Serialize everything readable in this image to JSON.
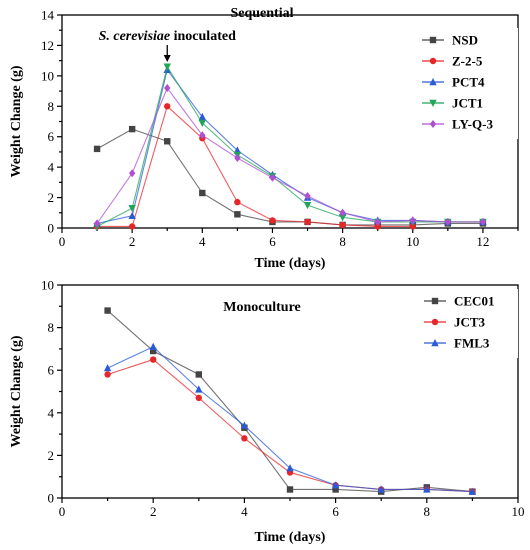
{
  "chart_data": [
    {
      "type": "line",
      "title": "Sequential",
      "xlabel": "Time (days)",
      "ylabel": "Weight Change (g)",
      "xlim": [
        0,
        13
      ],
      "ylim": [
        0,
        14
      ],
      "xticks": [
        0,
        2,
        4,
        6,
        8,
        10,
        12
      ],
      "yticks": [
        0,
        2,
        4,
        6,
        8,
        10,
        12,
        14
      ],
      "legend_position": "top-right",
      "annotations": [
        {
          "text_italic": "S. cerevisiae",
          "text_rest": " inoculated",
          "x": 3
        }
      ],
      "series": [
        {
          "name": "NSD",
          "color": "#444444",
          "marker": "square",
          "linestyle": "solid",
          "x": [
            1,
            2,
            3,
            4,
            5,
            6,
            7,
            8,
            9,
            10,
            11,
            12
          ],
          "values": [
            5.2,
            6.5,
            5.7,
            2.3,
            0.9,
            0.4,
            0.4,
            0.2,
            0.2,
            0.2,
            0.3,
            0.3
          ]
        },
        {
          "name": "Z-2-5",
          "color": "#e8262a",
          "marker": "circle",
          "linestyle": "solid",
          "x": [
            1,
            2,
            3,
            4,
            5,
            6,
            7,
            8,
            9,
            10
          ],
          "values": [
            0.1,
            0.1,
            8.0,
            5.9,
            1.7,
            0.5,
            0.4,
            0.2,
            0.1,
            0.1
          ]
        },
        {
          "name": "PCT4",
          "color": "#2a5bd7",
          "marker": "triangle-up",
          "linestyle": "solid",
          "x": [
            1,
            2,
            3,
            4,
            5,
            6,
            7,
            8,
            9,
            10,
            11,
            12
          ],
          "values": [
            0.3,
            0.8,
            10.4,
            7.3,
            5.1,
            3.5,
            2.0,
            1.0,
            0.5,
            0.5,
            0.4,
            0.4
          ]
        },
        {
          "name": "JCT1",
          "color": "#22a55a",
          "marker": "triangle-down",
          "linestyle": "solid",
          "x": [
            1,
            2,
            3,
            4,
            5,
            6,
            7,
            8,
            9,
            10,
            11,
            12
          ],
          "values": [
            0.1,
            1.3,
            10.6,
            6.9,
            4.8,
            3.4,
            1.5,
            0.7,
            0.4,
            0.4,
            0.4,
            0.4
          ]
        },
        {
          "name": "LY-Q-3",
          "color": "#b04fd1",
          "marker": "diamond",
          "linestyle": "solid",
          "x": [
            1,
            2,
            3,
            4,
            5,
            6,
            7,
            8,
            9,
            10,
            11,
            12
          ],
          "values": [
            0.3,
            3.6,
            9.2,
            6.1,
            4.6,
            3.3,
            2.1,
            1.0,
            0.4,
            0.5,
            0.4,
            0.4
          ]
        }
      ]
    },
    {
      "type": "line",
      "title": "Monoculture",
      "xlabel": "Time (days)",
      "ylabel": "Weight Change (g)",
      "xlim": [
        0,
        10
      ],
      "ylim": [
        0,
        10
      ],
      "xticks": [
        0,
        2,
        4,
        6,
        8,
        10
      ],
      "yticks": [
        0,
        2,
        4,
        6,
        8,
        10
      ],
      "legend_position": "top-right",
      "series": [
        {
          "name": "CEC01",
          "color": "#444444",
          "marker": "square",
          "linestyle": "solid",
          "x": [
            1,
            2,
            3,
            4,
            5,
            6,
            7,
            8,
            9
          ],
          "values": [
            8.8,
            6.9,
            5.8,
            3.3,
            0.4,
            0.4,
            0.3,
            0.5,
            0.3
          ]
        },
        {
          "name": "JCT3",
          "color": "#e8262a",
          "marker": "circle",
          "linestyle": "solid",
          "x": [
            1,
            2,
            3,
            4,
            5,
            6,
            7,
            8,
            9
          ],
          "values": [
            5.8,
            6.5,
            4.7,
            2.8,
            1.2,
            0.6,
            0.4,
            0.4,
            0.3
          ]
        },
        {
          "name": "FML3",
          "color": "#2a5bd7",
          "marker": "triangle-up",
          "linestyle": "solid",
          "x": [
            1,
            2,
            3,
            4,
            5,
            6,
            7,
            8,
            9
          ],
          "values": [
            6.1,
            7.1,
            5.1,
            3.4,
            1.4,
            0.6,
            0.4,
            0.4,
            0.3
          ]
        }
      ]
    }
  ]
}
